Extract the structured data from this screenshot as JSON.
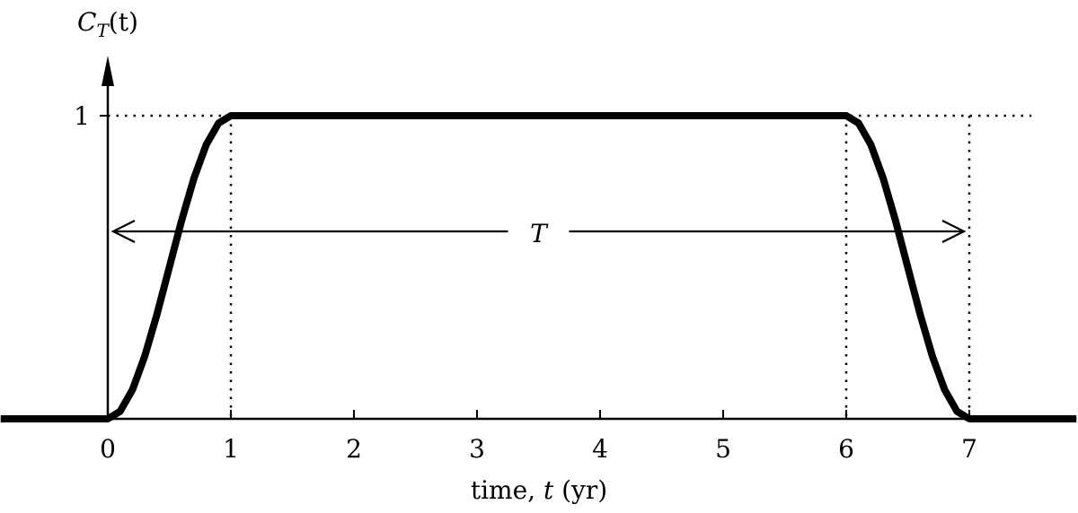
{
  "chart_data": {
    "type": "line",
    "title": "",
    "xlabel": {
      "prefix": "time, ",
      "var": "t",
      "suffix": " (yr)"
    },
    "ylabel": {
      "main": "C",
      "sub": "T",
      "arg": "(t)"
    },
    "x_ticks": [
      0,
      1,
      2,
      3,
      4,
      5,
      6,
      7
    ],
    "y_ticks": [
      1
    ],
    "xlim": [
      -0.87,
      7.87
    ],
    "ylim": [
      0,
      1
    ],
    "series": [
      {
        "style": "thick-solid",
        "x": [
          -0.87,
          0,
          0.1,
          0.2,
          0.3,
          0.4,
          0.5,
          0.6,
          0.7,
          0.8,
          0.9,
          1,
          6,
          6.1,
          6.2,
          6.3,
          6.4,
          6.5,
          6.6,
          6.7,
          6.8,
          6.9,
          7,
          7.87
        ],
        "y": [
          0,
          0,
          0.0245,
          0.0955,
          0.2061,
          0.3455,
          0.5,
          0.6545,
          0.7939,
          0.9045,
          0.9755,
          1,
          1,
          0.9755,
          0.9045,
          0.7939,
          0.6545,
          0.5,
          0.3455,
          0.2061,
          0.0955,
          0.0245,
          0,
          0
        ]
      }
    ],
    "reference_lines": {
      "horizontal_at_y": 1,
      "vertical_at_x": [
        1,
        6,
        7
      ],
      "style": "dotted"
    },
    "span_annotation": {
      "label": "T",
      "from_x": 0,
      "to_x": 7,
      "at_y": 0.5
    }
  }
}
